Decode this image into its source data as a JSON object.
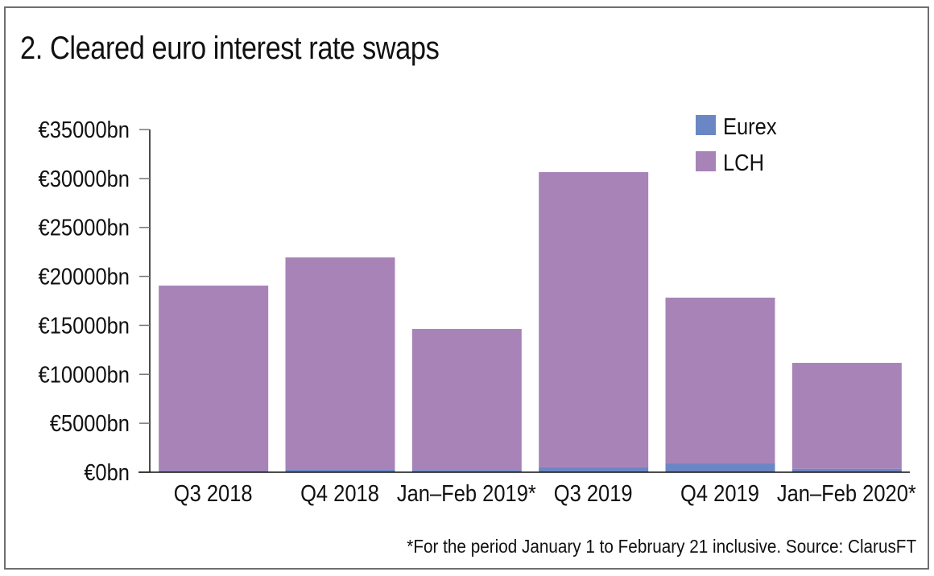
{
  "chart_data": {
    "type": "bar",
    "stacked": true,
    "title": "2. Cleared euro interest rate swaps",
    "xlabel": "",
    "ylabel": "",
    "categories": [
      "Q3 2018",
      "Q4 2018",
      "Jan–Feb 2019*",
      "Q3 2019",
      "Q4 2019",
      "Jan–Feb 2020*"
    ],
    "series": [
      {
        "name": "Eurex",
        "color": "#6a86c4",
        "values": [
          150,
          250,
          230,
          500,
          900,
          350
        ]
      },
      {
        "name": "LCH",
        "color": "#a783b8",
        "values": [
          18910,
          21690,
          14400,
          30150,
          16930,
          10820
        ]
      }
    ],
    "ylim": [
      0,
      35000
    ],
    "yticks": [
      0,
      5000,
      10000,
      15000,
      20000,
      25000,
      30000,
      35000
    ],
    "ytick_labels": [
      "€0bn",
      "€5000bn",
      "€10000bn",
      "€15000bn",
      "€20000bn",
      "€25000bn",
      "€30000bn",
      "€35000bn"
    ],
    "grid": false,
    "legend": {
      "position": "top-right",
      "entries": [
        "Eurex",
        "LCH"
      ]
    },
    "footnote": "*For the period January 1 to February 21 inclusive. Source: ClarusFT"
  }
}
